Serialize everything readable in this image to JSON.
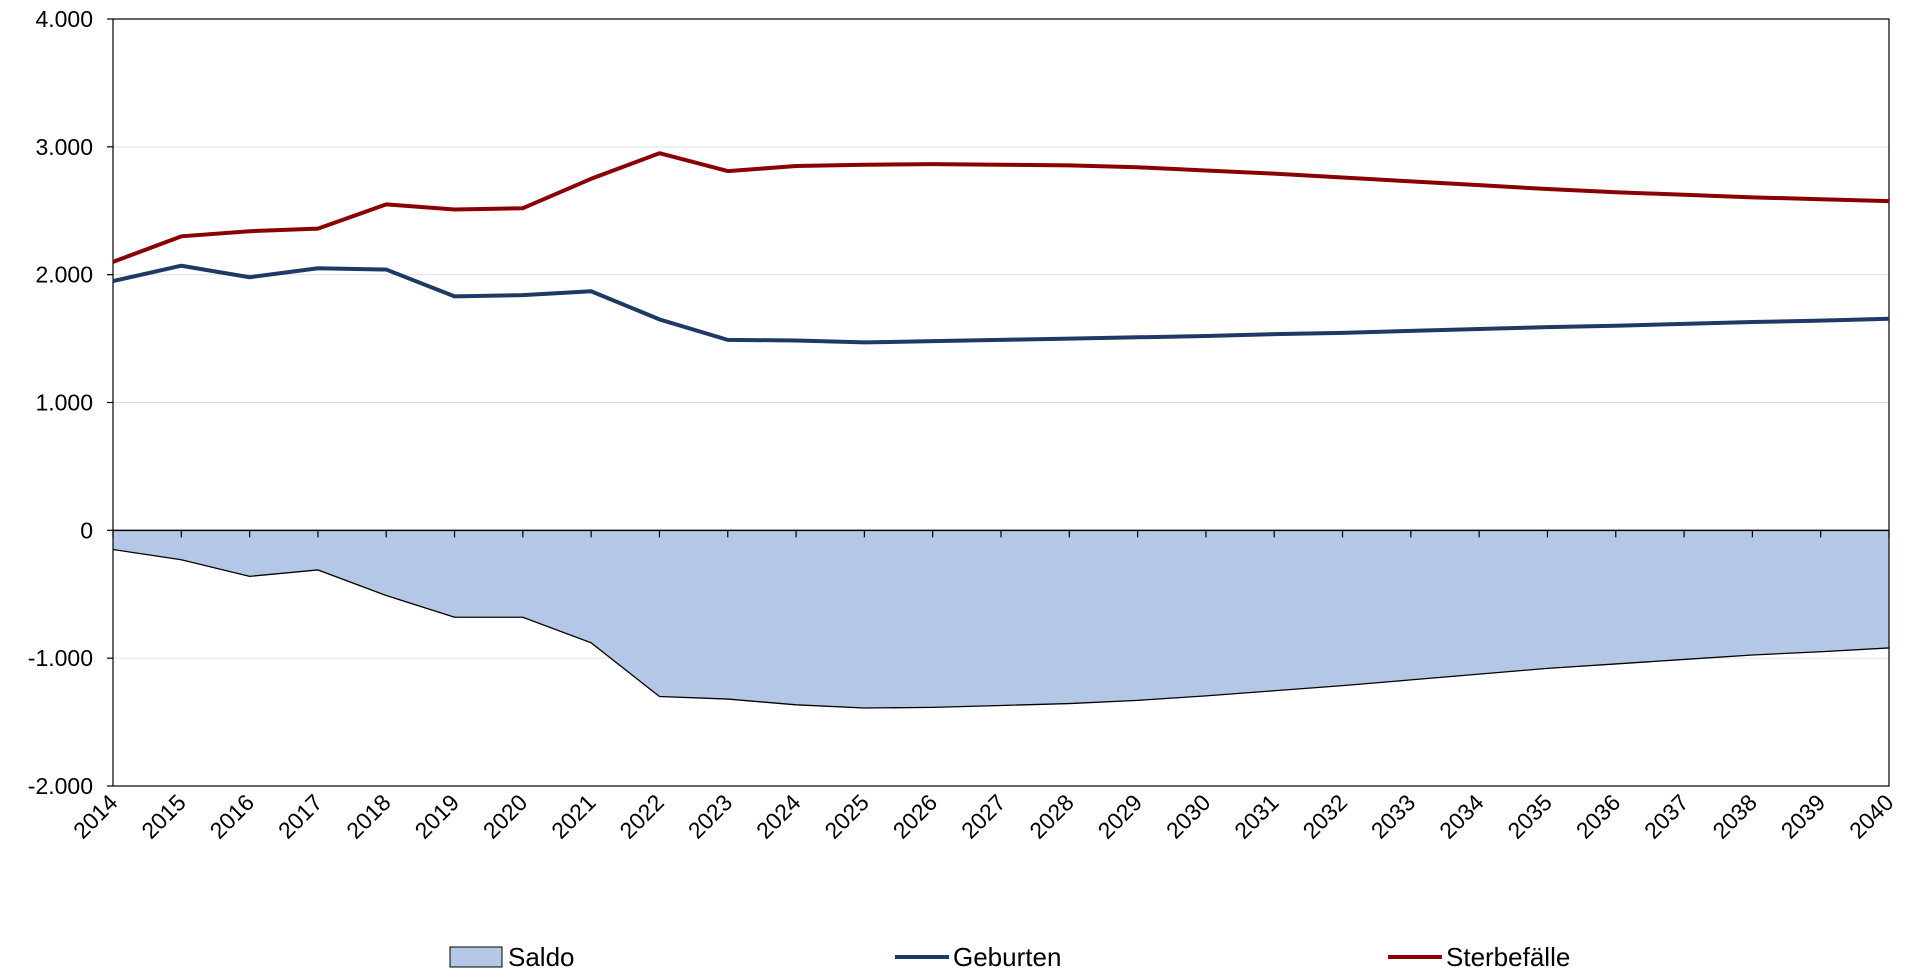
{
  "chart_data": {
    "type": "line-area",
    "categories": [
      "2014",
      "2015",
      "2016",
      "2017",
      "2018",
      "2019",
      "2020",
      "2021",
      "2022",
      "2023",
      "2024",
      "2025",
      "2026",
      "2027",
      "2028",
      "2029",
      "2030",
      "2031",
      "2032",
      "2033",
      "2034",
      "2035",
      "2036",
      "2037",
      "2038",
      "2039",
      "2040"
    ],
    "series": [
      {
        "name": "Saldo",
        "kind": "area",
        "color": "#b4c7e7",
        "values": [
          -150,
          -230,
          -360,
          -310,
          -510,
          -680,
          -680,
          -880,
          -1300,
          -1320,
          -1365,
          -1390,
          -1385,
          -1370,
          -1355,
          -1330,
          -1295,
          -1255,
          -1215,
          -1170,
          -1125,
          -1080,
          -1045,
          -1010,
          -975,
          -950,
          -920
        ]
      },
      {
        "name": "Geburten",
        "kind": "line",
        "color": "#1f3864",
        "values": [
          1950,
          2070,
          1980,
          2050,
          2040,
          1830,
          1840,
          1870,
          1650,
          1490,
          1485,
          1470,
          1480,
          1490,
          1500,
          1510,
          1520,
          1535,
          1545,
          1560,
          1575,
          1590,
          1600,
          1615,
          1630,
          1640,
          1655
        ]
      },
      {
        "name": "Sterbefälle",
        "kind": "line",
        "color": "#8b0000",
        "values": [
          2100,
          2300,
          2340,
          2360,
          2550,
          2510,
          2520,
          2750,
          2950,
          2810,
          2850,
          2860,
          2865,
          2860,
          2855,
          2840,
          2815,
          2790,
          2760,
          2730,
          2700,
          2670,
          2645,
          2625,
          2605,
          2590,
          2575
        ]
      }
    ],
    "ylim": [
      -2000,
      4000
    ],
    "yticks": [
      {
        "value": -2000,
        "label": "-2.000"
      },
      {
        "value": -1000,
        "label": "-1.000"
      },
      0,
      {
        "value": 1000,
        "label": "1.000"
      },
      {
        "value": 2000,
        "label": "2.000"
      },
      {
        "value": 3000,
        "label": "3.000"
      },
      {
        "value": 4000,
        "label": "4.000"
      }
    ],
    "grid": true
  }
}
